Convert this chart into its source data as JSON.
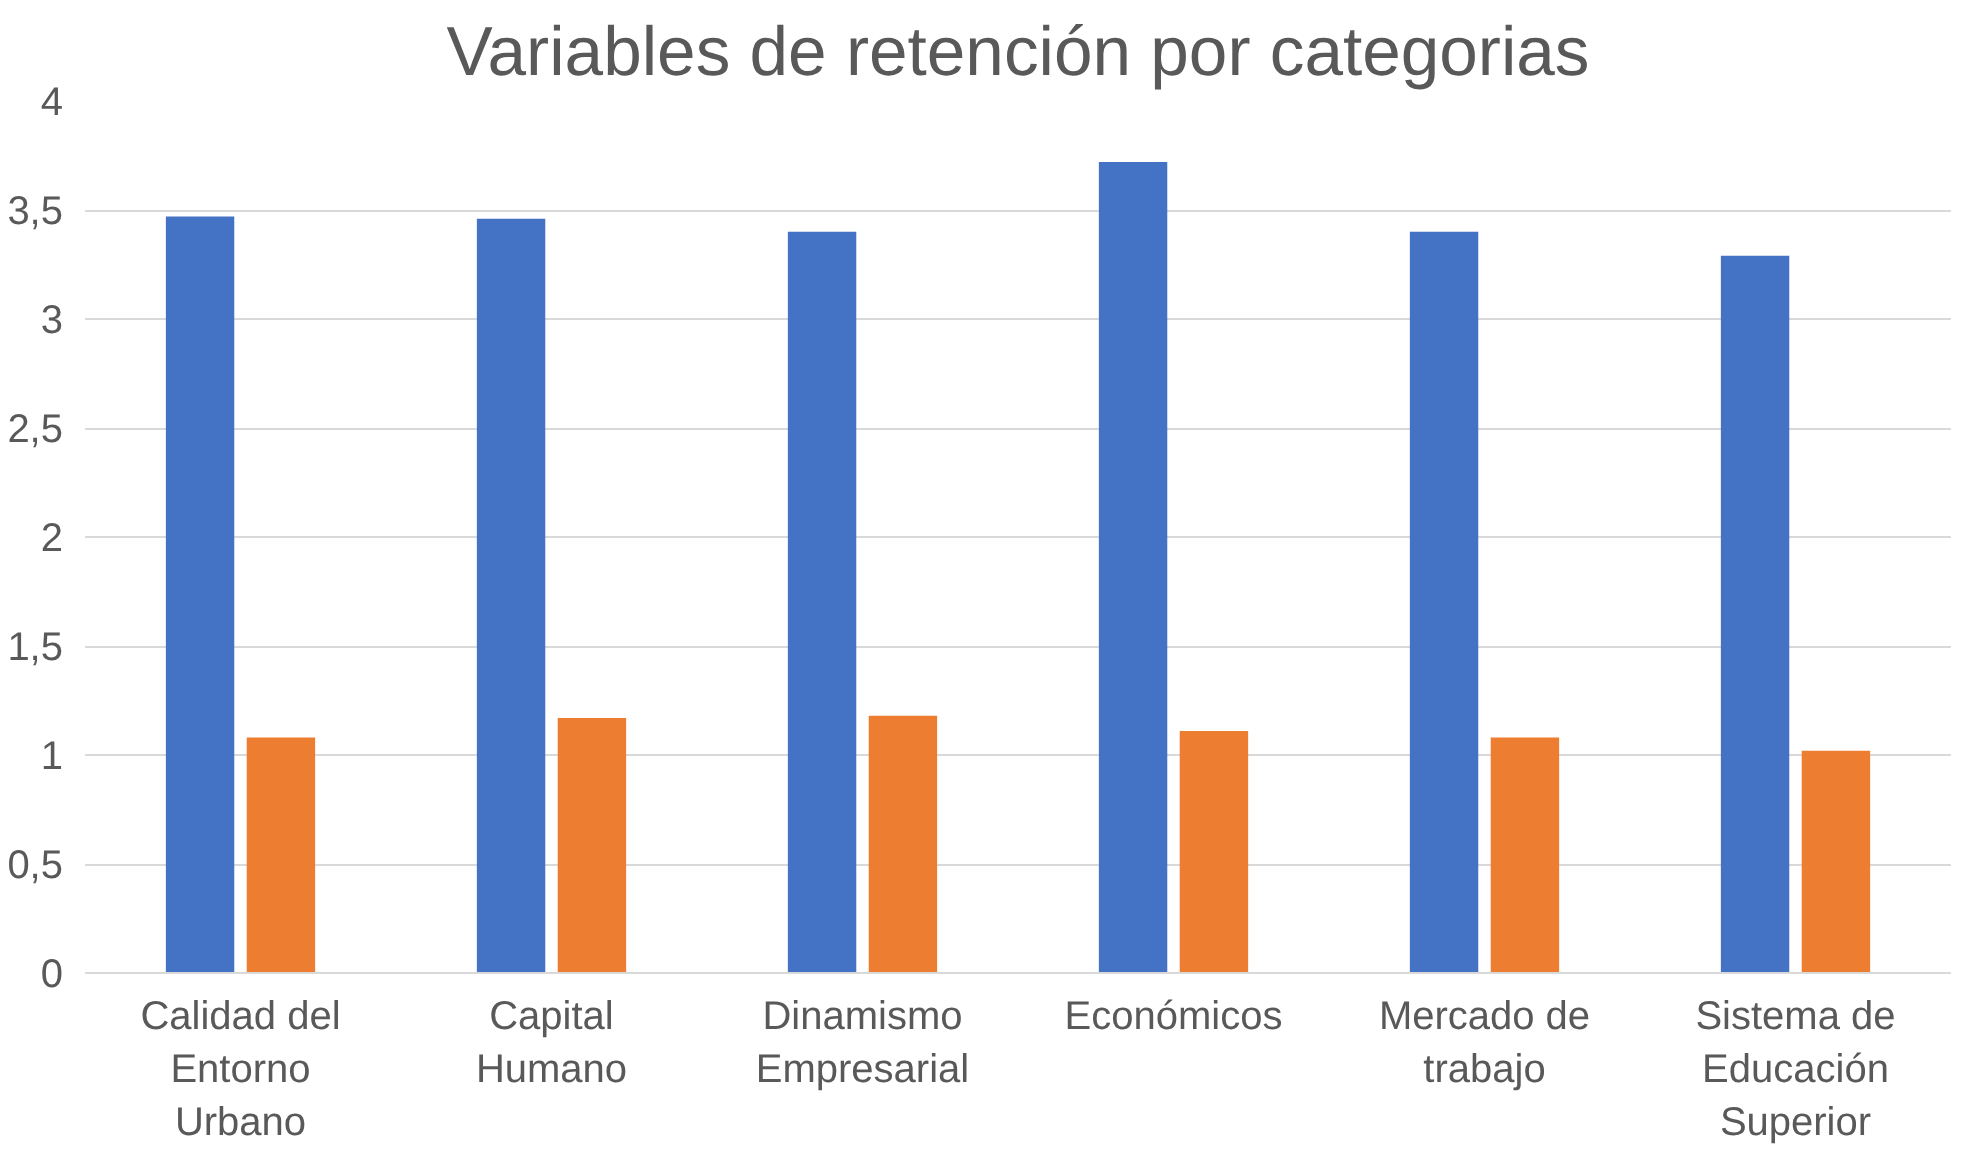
{
  "chart_data": {
    "type": "bar",
    "title": "Variables de retención por categorias",
    "categories": [
      "Calidad del Entorno Urbano",
      "Capital Humano",
      "Dinamismo Empresarial",
      "Económicos",
      "Mercado de trabajo",
      "Sistema de Educación Superior"
    ],
    "series": [
      {
        "color": "#4472c4",
        "values": [
          3.47,
          3.46,
          3.4,
          3.72,
          3.4,
          3.29
        ]
      },
      {
        "color": "#ed7d31",
        "values": [
          1.08,
          1.17,
          1.18,
          1.11,
          1.08,
          1.02
        ]
      }
    ],
    "ylim": [
      0,
      4
    ],
    "yticks": [
      0,
      {
        "value": 0.5,
        "label": "0,5"
      },
      1,
      {
        "value": 1.5,
        "label": "1,5"
      },
      2,
      {
        "value": 2.5,
        "label": "2,5"
      },
      3,
      {
        "value": 3.5,
        "label": "3,5"
      },
      4
    ],
    "grid": "y"
  }
}
